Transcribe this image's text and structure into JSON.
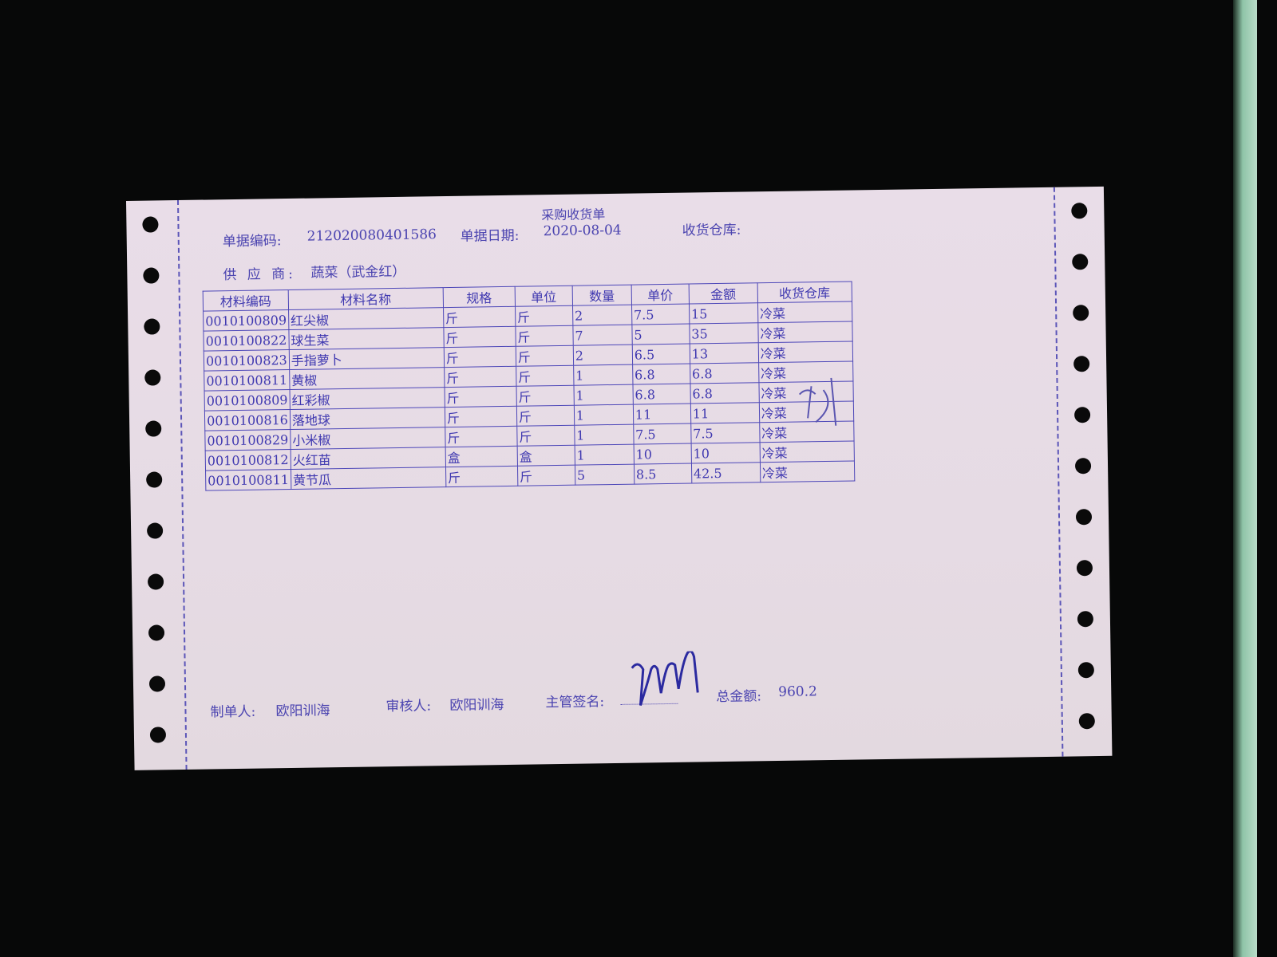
{
  "document": {
    "title": "采购收货单",
    "fields": {
      "doc_no_label": "单据编码:",
      "doc_no": "212020080401586",
      "doc_date_label": "单据日期:",
      "doc_date": "2020-08-04",
      "warehouse_label": "收货仓库:",
      "supplier_label": "供 应 商:",
      "supplier": "蔬菜（武金红）"
    },
    "table": {
      "columns": [
        "材料编码",
        "材料名称",
        "规格",
        "单位",
        "数量",
        "单价",
        "金额",
        "收货仓库"
      ],
      "rows": [
        [
          "0010100809",
          "红尖椒",
          "斤",
          "斤",
          "2",
          "7.5",
          "15",
          "冷菜"
        ],
        [
          "0010100822",
          "球生菜",
          "斤",
          "斤",
          "7",
          "5",
          "35",
          "冷菜"
        ],
        [
          "0010100823",
          "手指萝卜",
          "斤",
          "斤",
          "2",
          "6.5",
          "13",
          "冷菜"
        ],
        [
          "0010100811",
          "黄椒",
          "斤",
          "斤",
          "1",
          "6.8",
          "6.8",
          "冷菜"
        ],
        [
          "0010100809",
          "红彩椒",
          "斤",
          "斤",
          "1",
          "6.8",
          "6.8",
          "冷菜"
        ],
        [
          "0010100816",
          "落地球",
          "斤",
          "斤",
          "1",
          "11",
          "11",
          "冷菜"
        ],
        [
          "0010100829",
          "小米椒",
          "斤",
          "斤",
          "1",
          "7.5",
          "7.5",
          "冷菜"
        ],
        [
          "0010100812",
          "火红苗",
          "盒",
          "盒",
          "1",
          "10",
          "10",
          "冷菜"
        ],
        [
          "0010100811",
          "黄节瓜",
          "斤",
          "斤",
          "5",
          "8.5",
          "42.5",
          "冷菜"
        ]
      ]
    },
    "footer": {
      "maker_label": "制单人:",
      "maker": "欧阳训海",
      "reviewer_label": "审核人:",
      "reviewer": "欧阳训海",
      "supervisor_label": "主管签名:",
      "total_label": "总金额:",
      "total": "960.2"
    },
    "colors": {
      "ink": "#4b44b0",
      "paper": "#e8dde7",
      "background": "#070808"
    }
  }
}
